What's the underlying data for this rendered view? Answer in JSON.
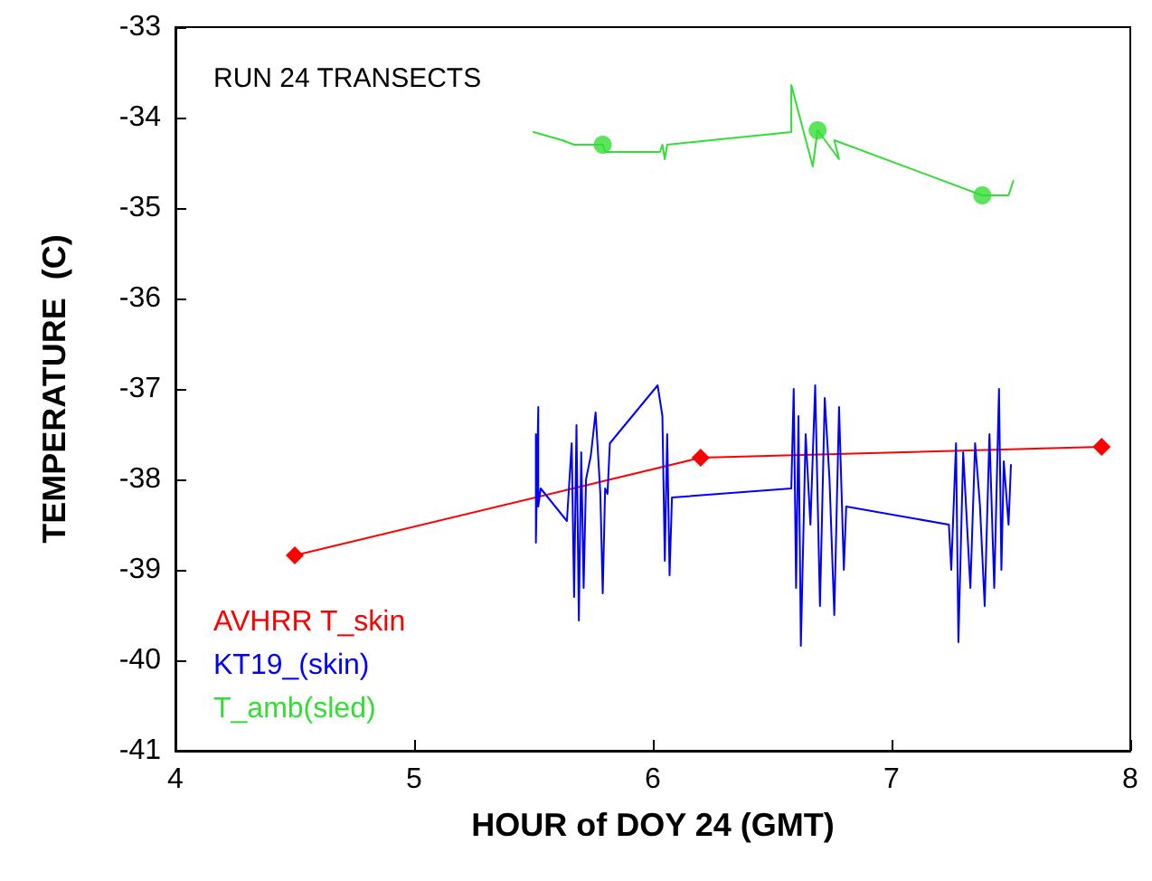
{
  "chart_data": {
    "type": "line",
    "xlabel": "HOUR of DOY 24 (GMT)",
    "ylabel": "TEMPERATURE  (C)",
    "annotations": [
      "RUN 24 TRANSECTS"
    ],
    "xlim": [
      4,
      8
    ],
    "xticks": [
      4,
      5,
      6,
      7,
      8
    ],
    "ylim": [
      -41,
      -33
    ],
    "yticks": [
      -41,
      -40,
      -39,
      -38,
      -37,
      -36,
      -35,
      -34,
      -33
    ],
    "grid": false,
    "legend": "bottom left",
    "series": [
      {
        "name": "AVHRR T_skin",
        "color": "#ff0000",
        "marker": "diamond",
        "x": [
          4.5,
          6.2,
          7.88
        ],
        "values": [
          -38.84,
          -37.76,
          -37.64
        ]
      },
      {
        "name": "KT19_(skin)",
        "color": "#0000ff",
        "marker": "none",
        "x": [
          5.51,
          5.51,
          5.52,
          5.52,
          5.53,
          5.64,
          5.66,
          5.67,
          5.68,
          5.69,
          5.7,
          5.71,
          5.72,
          5.74,
          5.76,
          5.77,
          5.78,
          5.79,
          5.8,
          5.81,
          5.82,
          6.02,
          6.04,
          6.05,
          6.06,
          6.07,
          6.08,
          6.58,
          6.59,
          6.6,
          6.61,
          6.62,
          6.64,
          6.66,
          6.68,
          6.7,
          6.72,
          6.74,
          6.76,
          6.78,
          6.8,
          6.81,
          7.24,
          7.25,
          7.27,
          7.28,
          7.3,
          7.33,
          7.35,
          7.37,
          7.39,
          7.41,
          7.43,
          7.45,
          7.46,
          7.47,
          7.49,
          7.5
        ],
        "values": [
          -37.5,
          -38.7,
          -37.2,
          -38.3,
          -38.1,
          -38.46,
          -37.6,
          -39.3,
          -37.4,
          -39.56,
          -37.7,
          -39.2,
          -38.0,
          -37.74,
          -37.26,
          -37.7,
          -38.16,
          -39.26,
          -38.1,
          -38.16,
          -37.6,
          -36.96,
          -37.3,
          -38.9,
          -37.5,
          -39.06,
          -38.2,
          -38.1,
          -37.0,
          -39.2,
          -37.3,
          -39.84,
          -37.5,
          -38.5,
          -36.96,
          -39.4,
          -37.1,
          -38.0,
          -39.5,
          -37.2,
          -39.0,
          -38.3,
          -38.5,
          -39.0,
          -37.6,
          -39.8,
          -37.7,
          -39.2,
          -37.6,
          -38.28,
          -39.4,
          -37.5,
          -39.2,
          -37.0,
          -39.0,
          -37.8,
          -38.5,
          -37.84
        ]
      },
      {
        "name": "T_amb(sled)",
        "color": "#33dd33",
        "marker": "none",
        "x": [
          5.5,
          5.62,
          5.67,
          5.79,
          5.8,
          6.03,
          6.04,
          6.05,
          6.06,
          6.58,
          6.58,
          6.67,
          6.69,
          6.78,
          6.76,
          7.38,
          7.49,
          7.51
        ],
        "values": [
          -34.16,
          -34.25,
          -34.3,
          -34.3,
          -34.38,
          -34.38,
          -34.3,
          -34.46,
          -34.3,
          -34.16,
          -33.64,
          -34.54,
          -34.14,
          -34.46,
          -34.25,
          -34.86,
          -34.86,
          -34.7
        ]
      },
      {
        "type": "scatter",
        "color": "#33dd33",
        "marker": "circle",
        "x": [
          5.79,
          6.69,
          7.38
        ],
        "values": [
          -34.3,
          -34.14,
          -34.86
        ]
      }
    ]
  }
}
